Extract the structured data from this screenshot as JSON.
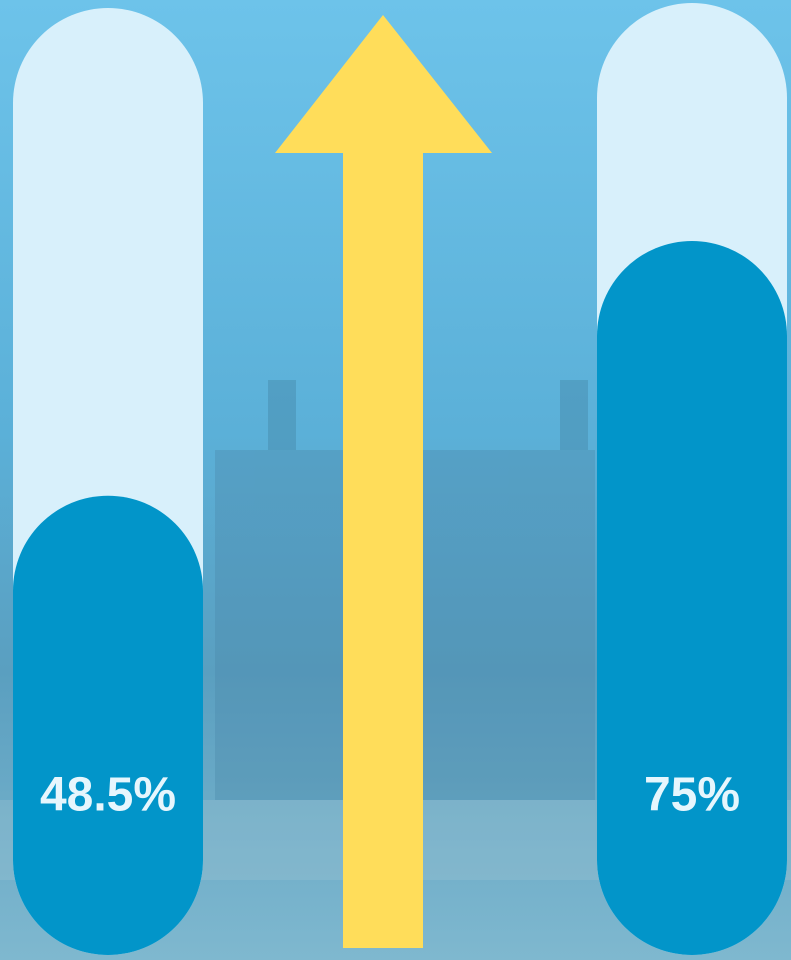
{
  "chart_data": {
    "type": "bar",
    "values": [
      48.5,
      75
    ],
    "value_labels": [
      "48.5%",
      "75%"
    ],
    "ylim": [
      0,
      100
    ],
    "color": "#0295c9",
    "track_color": "#d8f0fb"
  }
}
